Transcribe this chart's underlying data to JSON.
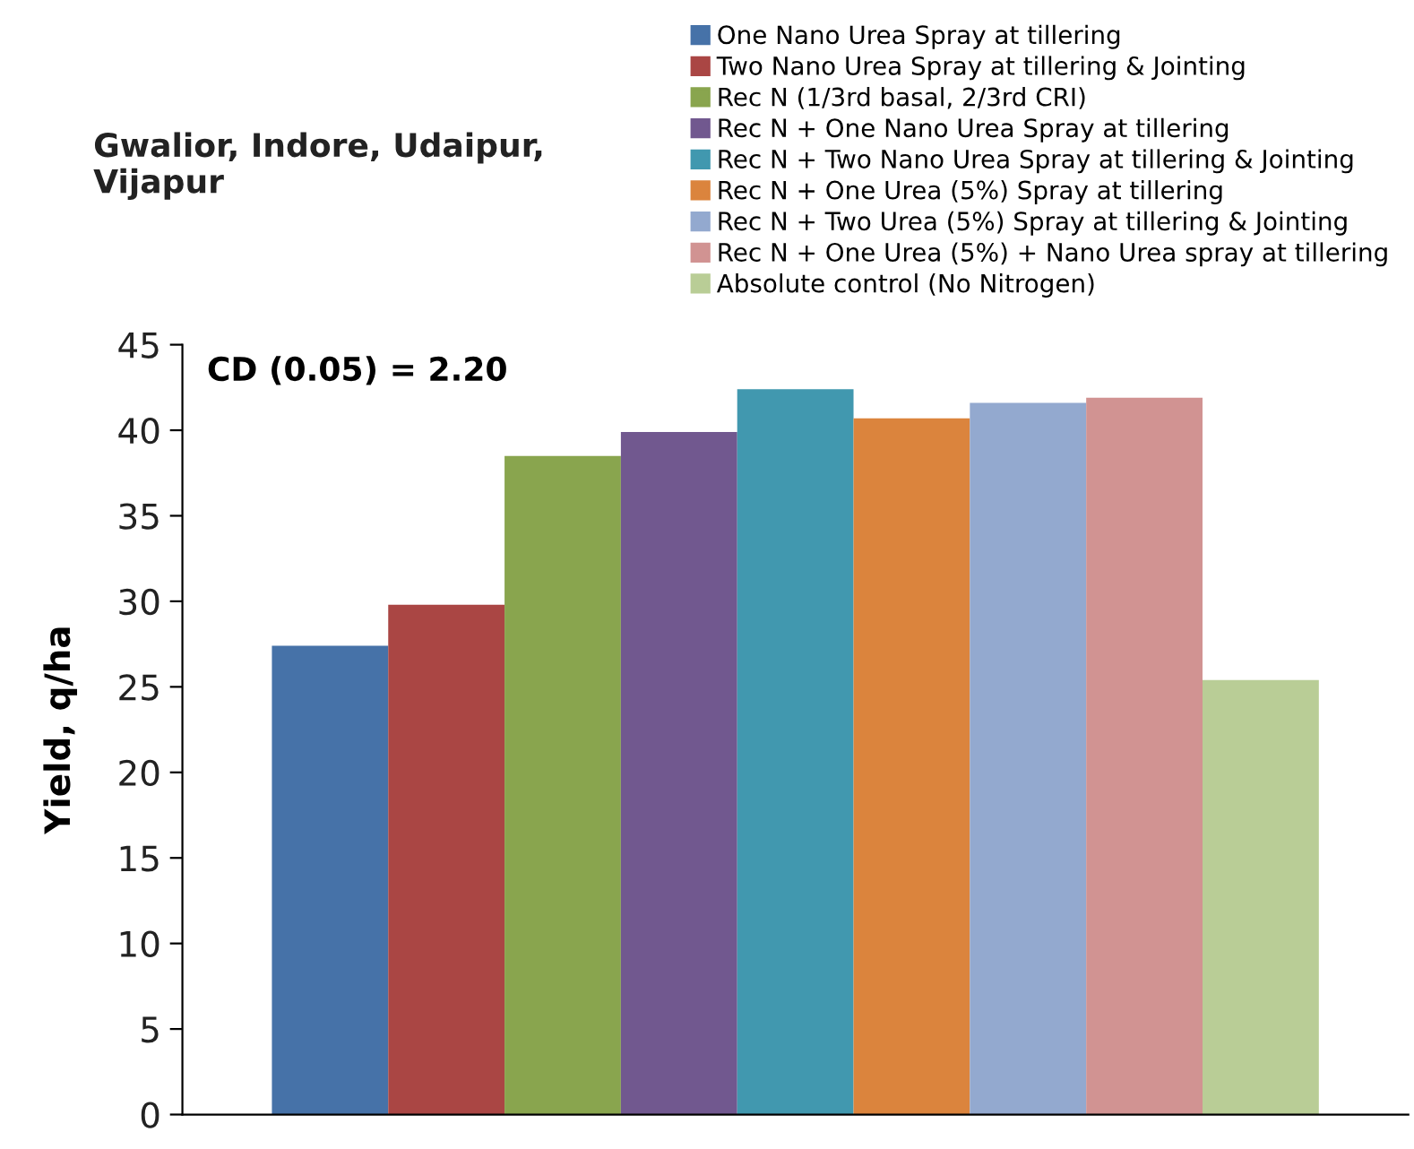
{
  "chart_data": {
    "type": "bar",
    "title": "Gwalior, Indore, Udaipur,\nVijapur",
    "ylabel": "Yield, q/ha",
    "categories": [
      null
    ],
    "series": [
      {
        "name": "One Nano Urea Spray at tillering",
        "color": "#4672a8",
        "values": [
          27.4
        ]
      },
      {
        "name": "Two Nano Urea Spray at tillering & Jointing",
        "color": "#aa4644",
        "values": [
          29.8
        ]
      },
      {
        "name": "Rec N (1/3rd basal, 2/3rd CRI)",
        "color": "#89a54e",
        "values": [
          38.5
        ]
      },
      {
        "name": "Rec N + One Nano Urea Spray at tillering",
        "color": "#71588f",
        "values": [
          39.9
        ]
      },
      {
        "name": "Rec N + Two Nano Urea Spray at tillering & Jointing",
        "color": "#4198af",
        "values": [
          42.4
        ]
      },
      {
        "name": "Rec N + One Urea (5%) Spray at tillering",
        "color": "#db843d",
        "values": [
          40.7
        ]
      },
      {
        "name": "Rec N + Two Urea (5%) Spray at tillering & Jointing",
        "color": "#93a9cf",
        "values": [
          41.6
        ]
      },
      {
        "name": "Rec N + One Urea (5%) + Nano Urea spray at tillering",
        "color": "#d19392",
        "values": [
          41.9
        ]
      },
      {
        "name": "Absolute control (No Nitrogen)",
        "color": "#b9cd96",
        "values": [
          25.4
        ]
      }
    ],
    "annotations": [
      "CD (0.05) = 2.20"
    ],
    "ylim": [
      0,
      45
    ],
    "yticks": [
      0,
      5,
      10,
      15,
      20,
      25,
      30,
      35,
      40,
      45
    ],
    "grid": false,
    "legend": "top right"
  }
}
